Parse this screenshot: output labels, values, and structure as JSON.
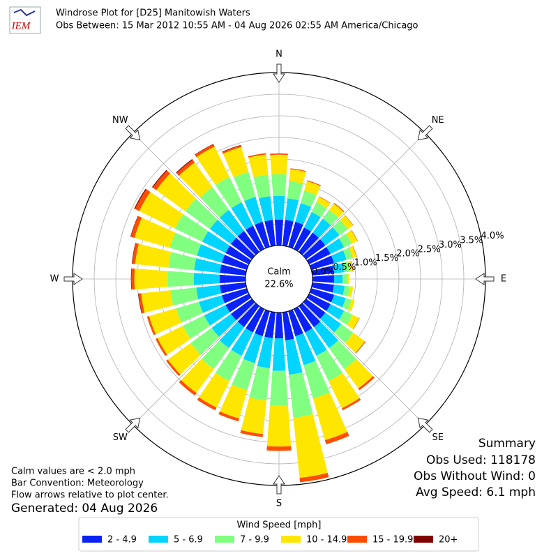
{
  "chart_data": {
    "type": "windrose",
    "logo": "IEM",
    "title": "Windrose Plot for [D25] Manitowish Waters",
    "subtitle": "Obs Between: 15 Mar 2012 10:55 AM - 04 Aug 2026 02:55 AM America/Chicago",
    "direction_labels": [
      "N",
      "NE",
      "E",
      "SE",
      "S",
      "SW",
      "W",
      "NW"
    ],
    "rlim": [
      0,
      4.0
    ],
    "rticks": [
      {
        "value": 0,
        "label": "0.0%"
      },
      {
        "value": 0.5,
        "label": "0.5%"
      },
      {
        "value": 1,
        "label": "1.0%"
      },
      {
        "value": 1.5,
        "label": "1.5%"
      },
      {
        "value": 2,
        "label": "2.0%"
      },
      {
        "value": 2.5,
        "label": "2.5%"
      },
      {
        "value": 3,
        "label": "3.0%"
      },
      {
        "value": 3.5,
        "label": "3.5%"
      },
      {
        "value": 4,
        "label": "4.0%"
      }
    ],
    "grid": true,
    "calm_label": "Calm",
    "calm_value": 22.6,
    "calm_value_label": "22.6%",
    "legend_title": "Wind Speed [mph]",
    "series": [
      {
        "name": "2 - 4.9",
        "color": "#0a22f5",
        "values": [
          0.6,
          0.6,
          0.6,
          0.55,
          0.55,
          0.55,
          0.55,
          0.55,
          0.5,
          0.5,
          0.5,
          0.55,
          0.55,
          0.55,
          0.6,
          0.6,
          0.6,
          0.65,
          0.6,
          0.6,
          0.6,
          0.6,
          0.6,
          0.6,
          0.6,
          0.6,
          0.6,
          0.6,
          0.6,
          0.6,
          0.6,
          0.6,
          0.6,
          0.6,
          0.6,
          0.6
        ]
      },
      {
        "name": "5 - 6.9",
        "color": "#00d4ff",
        "values": [
          0.55,
          0.5,
          0.45,
          0.4,
          0.4,
          0.4,
          0.35,
          0.3,
          0.25,
          0.2,
          0.25,
          0.28,
          0.35,
          0.45,
          0.6,
          0.6,
          0.7,
          0.8,
          0.75,
          0.7,
          0.65,
          0.6,
          0.6,
          0.55,
          0.55,
          0.55,
          0.55,
          0.6,
          0.6,
          0.6,
          0.6,
          0.6,
          0.6,
          0.6,
          0.6,
          0.55
        ]
      },
      {
        "name": "7 - 9.9",
        "color": "#80ff80",
        "values": [
          0.5,
          0.4,
          0.3,
          0.25,
          0.25,
          0.24,
          0.2,
          0.15,
          0.12,
          0.1,
          0.12,
          0.14,
          0.22,
          0.35,
          0.6,
          0.65,
          0.8,
          1.0,
          0.8,
          0.75,
          0.65,
          0.65,
          0.6,
          0.6,
          0.55,
          0.55,
          0.6,
          0.6,
          0.6,
          0.65,
          0.7,
          0.7,
          0.65,
          0.65,
          0.6,
          0.5
        ]
      },
      {
        "name": "10 - 14.9",
        "color": "#ffe600",
        "values": [
          0.45,
          0.28,
          0.23,
          0.14,
          0.18,
          0.15,
          0.14,
          0.09,
          0.07,
          0.05,
          0.08,
          0.08,
          0.17,
          0.33,
          0.55,
          0.7,
          1.0,
          1.4,
          0.95,
          0.78,
          0.68,
          0.68,
          0.68,
          0.65,
          0.65,
          0.65,
          0.68,
          0.77,
          0.77,
          0.85,
          0.92,
          0.83,
          0.7,
          0.78,
          0.6,
          0.47
        ]
      },
      {
        "name": "15 - 19.9",
        "color": "#ff4d00",
        "values": [
          0.03,
          0.02,
          0.02,
          0.01,
          0.02,
          0.01,
          0.01,
          0.01,
          0.01,
          0,
          0,
          0,
          0.01,
          0.02,
          0.05,
          0.05,
          0.1,
          0.1,
          0.1,
          0.07,
          0.07,
          0.07,
          0.07,
          0.05,
          0.05,
          0.05,
          0.06,
          0.07,
          0.07,
          0.09,
          0.11,
          0.1,
          0.08,
          0.06,
          0.04,
          0.03
        ]
      },
      {
        "name": "20+",
        "color": "#800000",
        "values": [
          0,
          0,
          0,
          0,
          0,
          0,
          0,
          0,
          0,
          0,
          0,
          0,
          0,
          0,
          0,
          0,
          0,
          0,
          0,
          0,
          0,
          0,
          0,
          0,
          0,
          0,
          0.01,
          0.01,
          0.01,
          0.01,
          0.02,
          0.02,
          0.02,
          0.01,
          0.01,
          0
        ]
      }
    ],
    "notes": [
      "Calm values are < 2.0 mph",
      "Bar Convention: Meteorology",
      "Flow arrows relative to plot center."
    ],
    "generated": "Generated: 04 Aug 2026",
    "summary_title": "Summary",
    "summary": [
      "Obs Used: 118178",
      "Obs Without Wind: 0",
      "Avg Speed: 6.1 mph"
    ]
  }
}
